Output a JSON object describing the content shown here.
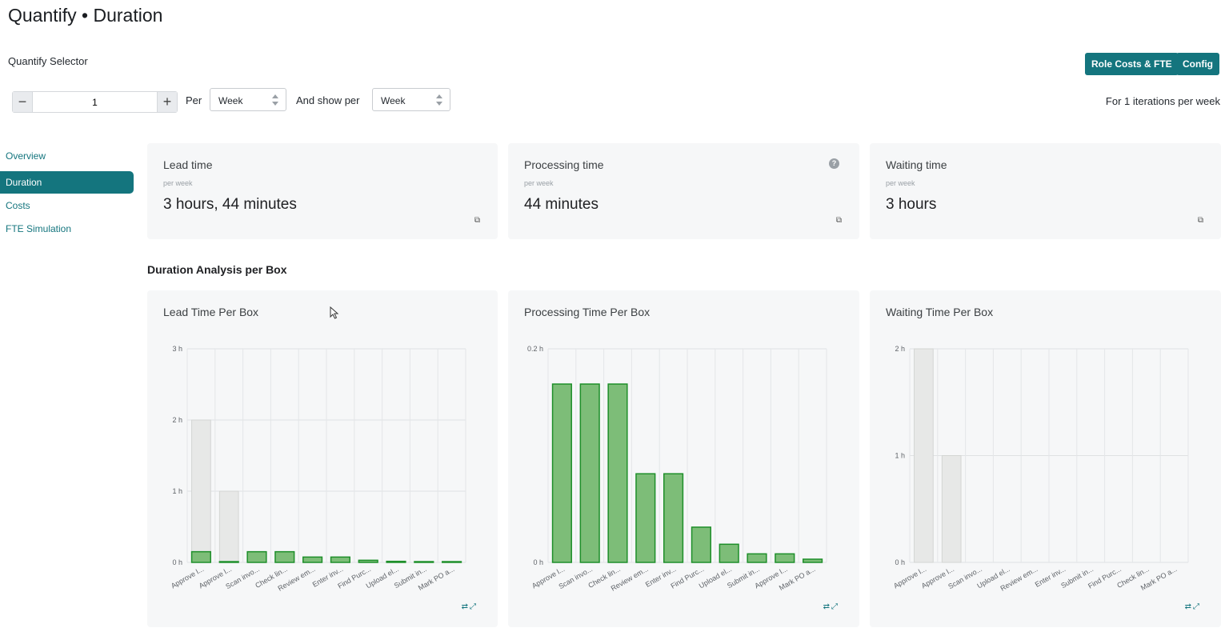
{
  "page": {
    "title": "Quantify • Duration"
  },
  "selector": {
    "label": "Quantify Selector",
    "quantity": "1",
    "minus": "−",
    "plus": "+",
    "per_label": "Per",
    "per_value": "Week",
    "show_per_label": "And show per",
    "show_per_value": "Week",
    "iterations_note": "For 1 iterations per week"
  },
  "header_buttons": {
    "role_costs": "Role Costs & FTE",
    "config": "Config"
  },
  "nav": {
    "items": [
      {
        "label": "Overview",
        "active": false
      },
      {
        "label": "Duration",
        "active": true
      },
      {
        "label": "Costs",
        "active": false
      },
      {
        "label": "FTE Simulation",
        "active": false
      }
    ]
  },
  "stats": [
    {
      "title": "Lead time",
      "sub": "per week",
      "value": "3 hours, 44 minutes",
      "icon": "copy-icon"
    },
    {
      "title": "Processing time",
      "sub": "per week",
      "value": "44 minutes",
      "icon": "copy-icon",
      "help": "?"
    },
    {
      "title": "Waiting time",
      "sub": "per week",
      "value": "3 hours",
      "icon": "copy-icon"
    }
  ],
  "section": {
    "title": "Duration Analysis per Box"
  },
  "colors": {
    "accent": "#14757e",
    "bar_green_fill": "#7dbd78",
    "bar_green_stroke": "#1e8f2a",
    "bar_gray_fill": "#e7e8e7",
    "bar_gray_stroke": "#d3d5d3"
  },
  "chart_data": [
    {
      "type": "bar",
      "title": "Lead Time Per Box",
      "ylim": [
        0,
        3
      ],
      "yticks": [
        0,
        1,
        2,
        3
      ],
      "ytick_labels": [
        "0 h",
        "1 h",
        "2 h",
        "3 h"
      ],
      "categories": [
        "Approve l...",
        "Approve l...",
        "Scan invo...",
        "Check lin...",
        "Review em...",
        "Enter inv...",
        "Find Purc...",
        "Upload el...",
        "Submit in...",
        "Mark PO a..."
      ],
      "series": [
        {
          "kind": "waiting",
          "values": [
            2.0,
            1.0,
            0,
            0,
            0,
            0,
            0,
            0,
            0,
            0
          ]
        },
        {
          "kind": "processing",
          "values": [
            0.15,
            0.01,
            0.15,
            0.15,
            0.075,
            0.075,
            0.03,
            0.015,
            0.01,
            0.005
          ]
        }
      ],
      "grid": true
    },
    {
      "type": "bar",
      "title": "Processing Time Per Box",
      "ylim": [
        0,
        0.2
      ],
      "yticks": [
        0,
        0.2
      ],
      "ytick_labels": [
        "0 h",
        "0.2 h"
      ],
      "categories": [
        "Approve l...",
        "Scan invo...",
        "Check lin...",
        "Review em...",
        "Enter inv...",
        "Find Purc...",
        "Upload el...",
        "Submit in...",
        "Approve l...",
        "Mark PO a..."
      ],
      "series": [
        {
          "kind": "processing",
          "values": [
            0.167,
            0.167,
            0.167,
            0.083,
            0.083,
            0.033,
            0.017,
            0.008,
            0.008,
            0.003
          ]
        }
      ],
      "grid": true
    },
    {
      "type": "bar",
      "title": "Waiting Time Per Box",
      "ylim": [
        0,
        2
      ],
      "yticks": [
        0,
        1,
        2
      ],
      "ytick_labels": [
        "0 h",
        "1 h",
        "2 h"
      ],
      "categories": [
        "Approve l...",
        "Approve l...",
        "Scan invo...",
        "Upload el...",
        "Review em...",
        "Enter inv...",
        "Submit in...",
        "Find Purc...",
        "Check lin...",
        "Mark PO a..."
      ],
      "series": [
        {
          "kind": "waiting",
          "values": [
            2.0,
            1.0,
            0,
            0,
            0,
            0,
            0,
            0,
            0,
            0
          ]
        }
      ],
      "grid": true
    }
  ]
}
